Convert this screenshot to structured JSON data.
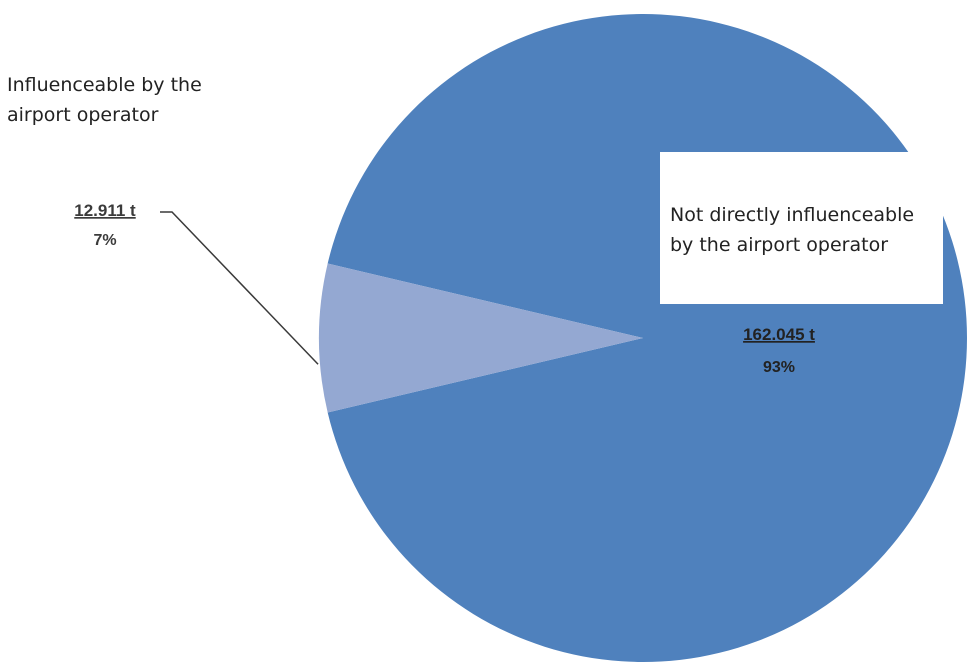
{
  "chart_data": {
    "type": "pie",
    "slices": [
      {
        "label": "Influenceable by the airport operator",
        "value": 12911,
        "value_text": "12.911 t",
        "percent": 7,
        "percent_text": "7%",
        "color": "#94a8d2"
      },
      {
        "label": "Not directly influenceable by the airport operator",
        "value": 162045,
        "value_text": "162.045 t",
        "percent": 93,
        "percent_text": "93%",
        "color": "#4f81bd"
      }
    ]
  },
  "labels": {
    "influenceable": "Influenceable by the airport operator",
    "not_influenceable": "Not directly influenceable by the airport operator"
  }
}
